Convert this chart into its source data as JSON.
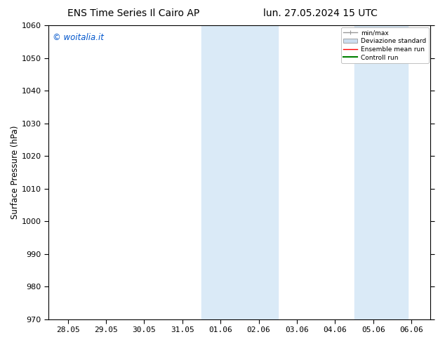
{
  "title_left": "ENS Time Series Il Cairo AP",
  "title_right": "lun. 27.05.2024 15 UTC",
  "ylabel": "Surface Pressure (hPa)",
  "watermark": "© woitalia.it",
  "watermark_color": "#0055cc",
  "ylim": [
    970,
    1060
  ],
  "yticks": [
    970,
    980,
    990,
    1000,
    1010,
    1020,
    1030,
    1040,
    1050,
    1060
  ],
  "xtick_labels": [
    "28.05",
    "29.05",
    "30.05",
    "31.05",
    "01.06",
    "02.06",
    "03.06",
    "04.06",
    "05.06",
    "06.06"
  ],
  "xtick_positions": [
    0,
    1,
    2,
    3,
    4,
    5,
    6,
    7,
    8,
    9
  ],
  "xlim": [
    -0.5,
    9.5
  ],
  "shaded_regions": [
    {
      "xmin": 3.5,
      "xmax": 5.5,
      "color": "#daeaf7"
    },
    {
      "xmin": 7.5,
      "xmax": 8.9,
      "color": "#daeaf7"
    }
  ],
  "legend_items": [
    {
      "label": "min/max",
      "color": "#999999",
      "lw": 1.0
    },
    {
      "label": "Deviazione standard",
      "color": "#ccddee",
      "lw": 6.0
    },
    {
      "label": "Ensemble mean run",
      "color": "#ff0000",
      "lw": 1.0
    },
    {
      "label": "Controll run",
      "color": "#008000",
      "lw": 1.5
    }
  ],
  "background_color": "#ffffff",
  "title_fontsize": 10,
  "tick_fontsize": 8,
  "ylabel_fontsize": 8.5
}
